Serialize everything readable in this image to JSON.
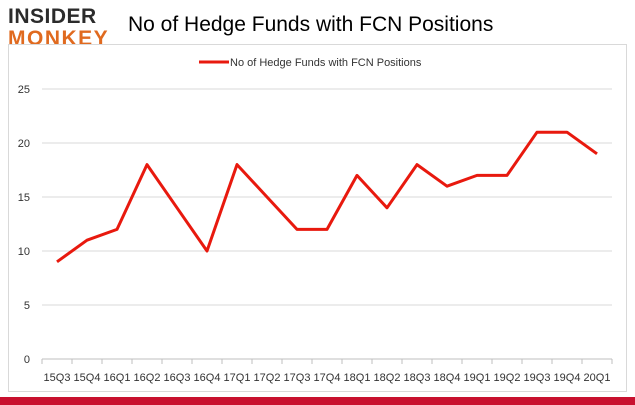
{
  "logo": {
    "line1": "INSIDER",
    "line2": "MONKEY"
  },
  "colors": {
    "series": "#e8190e",
    "grid": "#d9d9d9",
    "axis": "#bfbfbf",
    "brand": "#c8102e",
    "logo_accent": "#e06a1f"
  },
  "chart_data": {
    "type": "line",
    "title": "No of Hedge Funds with FCN Positions",
    "xlabel": "",
    "ylabel": "",
    "ylim": [
      0,
      25
    ],
    "yticks": [
      0,
      5,
      10,
      15,
      20,
      25
    ],
    "grid": true,
    "legend_position": "top-center",
    "categories": [
      "15Q3",
      "15Q4",
      "16Q1",
      "16Q2",
      "16Q3",
      "16Q4",
      "17Q1",
      "17Q2",
      "17Q3",
      "17Q4",
      "18Q1",
      "18Q2",
      "18Q3",
      "18Q4",
      "19Q1",
      "19Q2",
      "19Q3",
      "19Q4",
      "20Q1"
    ],
    "series": [
      {
        "name": "No of Hedge Funds with FCN Positions",
        "values": [
          9,
          11,
          12,
          18,
          14,
          10,
          18,
          15,
          12,
          12,
          17,
          14,
          18,
          16,
          17,
          17,
          21,
          21,
          19
        ]
      }
    ]
  }
}
